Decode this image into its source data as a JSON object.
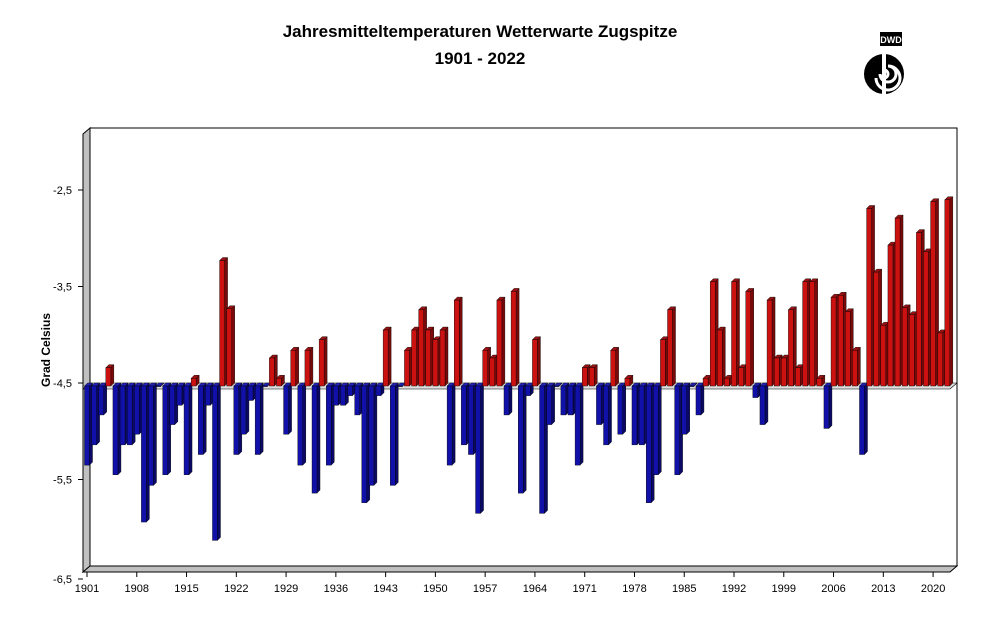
{
  "chart_data": {
    "type": "bar",
    "title": "Jahresmitteltemperaturen Wetterwarte Zugspitze",
    "subtitle": "1901 - 2022",
    "xlabel": "",
    "ylabel": "Grad Celsius",
    "ylim": [
      -6.5,
      -2.0
    ],
    "baseline": -4.5,
    "yticks": [
      "-2,5",
      "-3,5",
      "-4,5",
      "-5,5",
      "-6,5"
    ],
    "ytick_values": [
      -2.5,
      -3.5,
      -4.5,
      -5.5,
      -6.5
    ],
    "xticks": [
      "1901",
      "1908",
      "1915",
      "1922",
      "1929",
      "1936",
      "1943",
      "1950",
      "1957",
      "1964",
      "1971",
      "1978",
      "1985",
      "1992",
      "1999",
      "2006",
      "2013",
      "2020"
    ],
    "x_start": 1901,
    "x_end": 2022,
    "values": [
      -5.32,
      -5.11,
      -4.8,
      -4.31,
      -5.42,
      -5.11,
      -5.11,
      -5.0,
      -5.91,
      -5.53,
      -4.5,
      -5.42,
      -4.9,
      -4.7,
      -5.42,
      -4.42,
      -5.21,
      -4.7,
      -6.1,
      -3.2,
      -3.7,
      -5.21,
      -5.0,
      -4.65,
      -5.21,
      -4.5,
      -4.21,
      -4.42,
      -5.0,
      -4.13,
      -5.32,
      -4.13,
      -5.61,
      -4.02,
      -5.32,
      -4.7,
      -4.7,
      -4.6,
      -4.8,
      -5.71,
      -5.53,
      -4.6,
      -3.92,
      -5.53,
      -4.5,
      -4.13,
      -3.92,
      -3.71,
      -3.92,
      -4.02,
      -3.92,
      -5.32,
      -3.61,
      -5.11,
      -5.21,
      -5.82,
      -4.13,
      -4.21,
      -3.61,
      -4.8,
      -3.52,
      -5.61,
      -4.6,
      -4.02,
      -5.82,
      -4.9,
      -4.5,
      -4.8,
      -4.8,
      -5.32,
      -4.31,
      -4.31,
      -4.9,
      -5.11,
      -4.13,
      -5.0,
      -4.42,
      -5.11,
      -5.11,
      -5.71,
      -5.42,
      -4.02,
      -3.71,
      -5.42,
      -5.0,
      -4.5,
      -4.8,
      -4.42,
      -3.42,
      -3.92,
      -4.42,
      -3.42,
      -4.31,
      -3.52,
      -4.62,
      -4.9,
      -3.61,
      -4.21,
      -4.21,
      -3.71,
      -4.31,
      -3.42,
      -3.42,
      -4.42,
      -4.94,
      -3.58,
      -3.56,
      -3.73,
      -4.13,
      -5.21,
      -2.66,
      -3.32,
      -3.87,
      -3.04,
      -2.76,
      -3.69,
      -3.76,
      -2.91,
      -3.11,
      -2.59,
      -3.95,
      -2.57
    ],
    "colors": {
      "above": "#cc1111",
      "below": "#1111aa"
    },
    "grid": false,
    "logo_text": "DWD"
  }
}
